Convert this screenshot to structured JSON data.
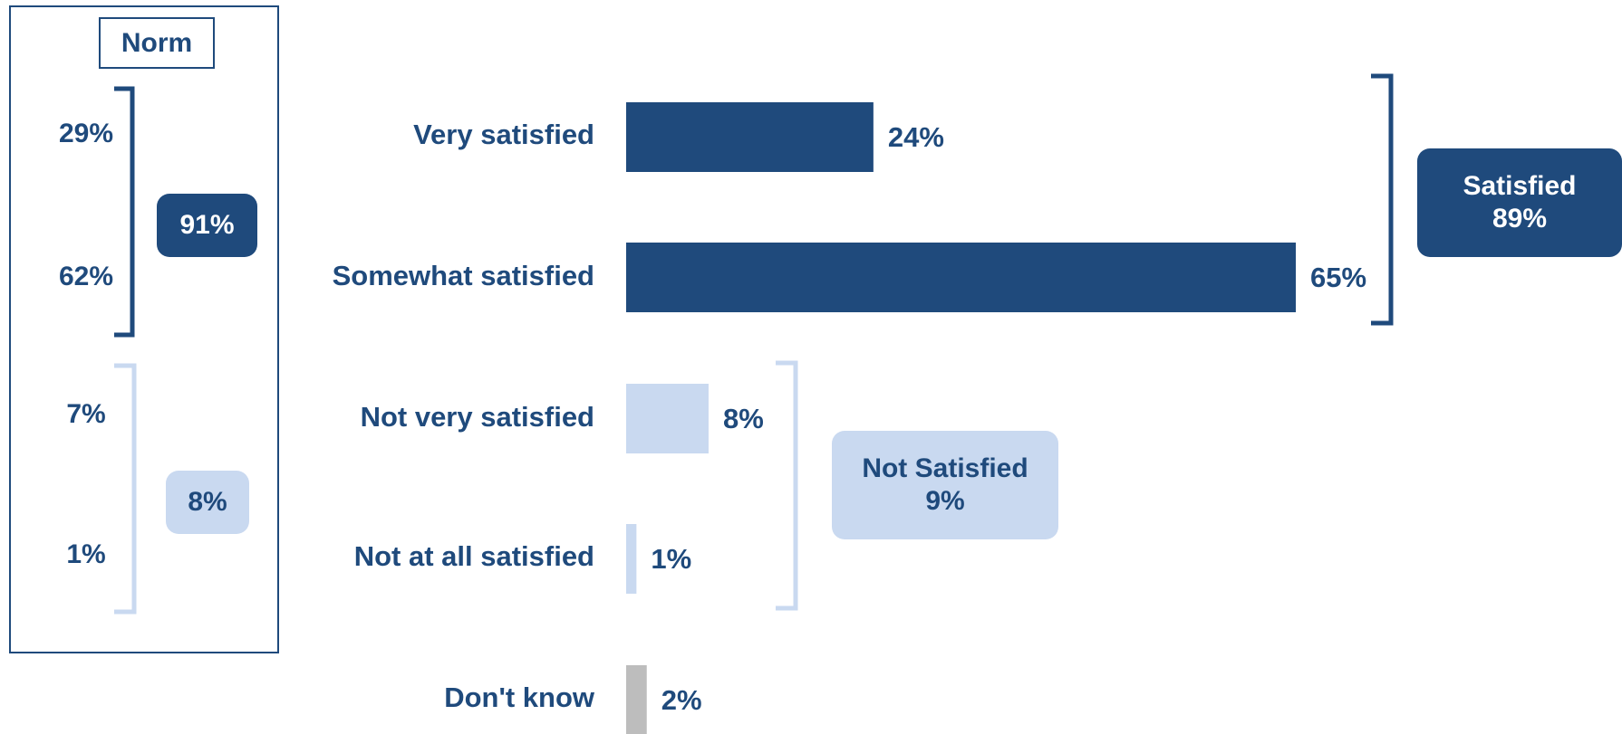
{
  "colors": {
    "dark": "#1f4a7c",
    "light": "#c9d9f0",
    "gray": "#bdbdbd"
  },
  "norm": {
    "title": "Norm",
    "values": [
      "29%",
      "62%",
      "7%",
      "1%"
    ],
    "satisfied_total": "91%",
    "not_satisfied_total": "8%"
  },
  "groups": {
    "satisfied": {
      "label": "Satisfied",
      "value": "89%"
    },
    "not_satisfied": {
      "label": "Not Satisfied",
      "value": "9%"
    }
  },
  "chart_data": {
    "type": "bar",
    "orientation": "horizontal",
    "categories": [
      "Very satisfied",
      "Somewhat satisfied",
      "Not very satisfied",
      "Not at all satisfied",
      "Don't know"
    ],
    "values": [
      24,
      65,
      8,
      1,
      2
    ],
    "value_labels": [
      "24%",
      "65%",
      "8%",
      "1%",
      "2%"
    ],
    "bar_colors": [
      "#1f4a7c",
      "#1f4a7c",
      "#c9d9f0",
      "#c9d9f0",
      "#bdbdbd"
    ],
    "xlim": [
      0,
      100
    ],
    "grid": false,
    "title": "",
    "xlabel": "",
    "ylabel": ""
  }
}
